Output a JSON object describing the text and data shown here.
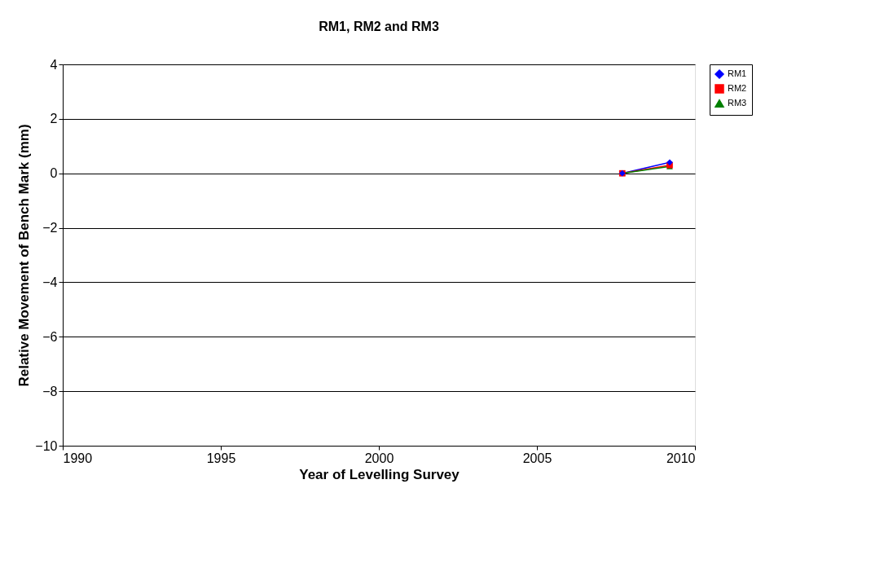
{
  "chart_data": {
    "type": "line",
    "title": "RM1, RM2 and RM3",
    "xlabel": "Year of Levelling Survey",
    "ylabel": "Relative Movement of Bench Mark (mm)",
    "x": [
      2007.7,
      2009.2
    ],
    "series": [
      {
        "name": "RM1",
        "color": "#0000ff",
        "marker": "diamond",
        "values": [
          0,
          0.4
        ]
      },
      {
        "name": "RM2",
        "color": "#ff0000",
        "marker": "square",
        "values": [
          0,
          0.3
        ]
      },
      {
        "name": "RM3",
        "color": "#008000",
        "marker": "triangle",
        "values": [
          0,
          0.25
        ]
      }
    ],
    "xlim": [
      1990,
      2010
    ],
    "xticks": [
      1990,
      1995,
      2000,
      2005,
      2010
    ],
    "ylim": [
      -10,
      4
    ],
    "yticks": [
      -10,
      -8,
      -6,
      -4,
      -2,
      0,
      2,
      4
    ],
    "grid": "y",
    "legend": "right",
    "line_style": "solid"
  }
}
